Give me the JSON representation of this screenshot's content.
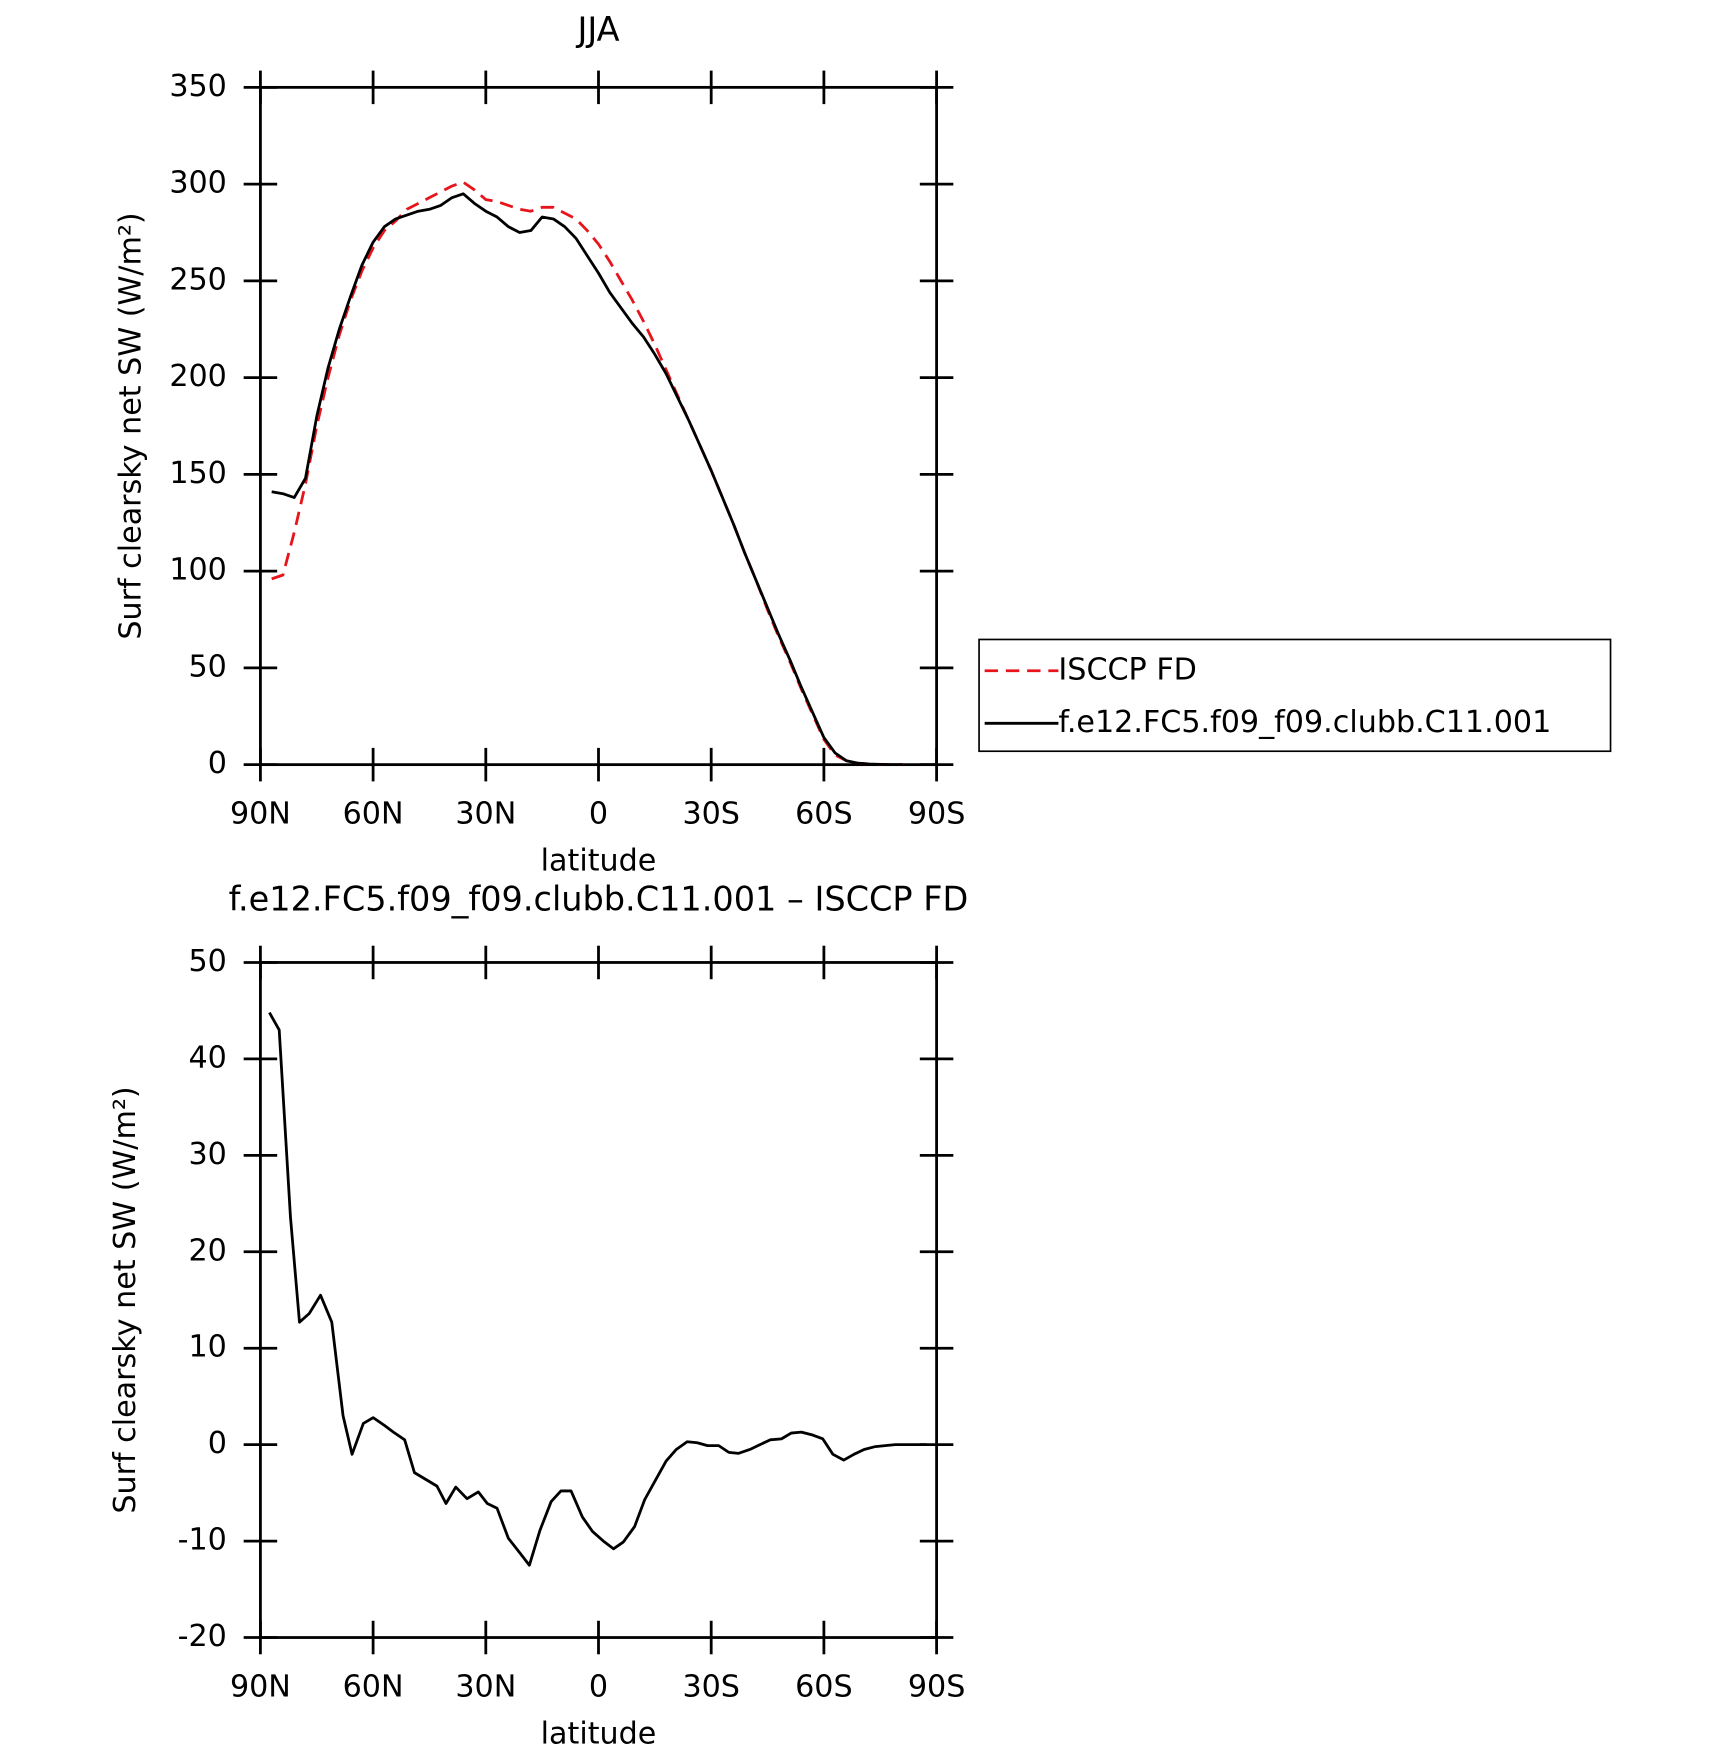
{
  "chart_data": [
    {
      "type": "line",
      "title": "JJA",
      "xlabel": "latitude",
      "ylabel": "Surf clearsky net SW (W/m²)",
      "x": [
        87,
        84,
        81,
        78,
        75,
        72,
        69,
        66,
        63,
        60,
        57,
        54,
        51,
        48,
        45,
        42,
        39,
        36,
        33,
        30,
        27,
        24,
        21,
        18,
        15,
        12,
        9,
        6,
        3,
        0,
        -3,
        -6,
        -9,
        -12,
        -15,
        -18,
        -21,
        -24,
        -27,
        -30,
        -33,
        -36,
        -39,
        -42,
        -45,
        -48,
        -51,
        -54,
        -57,
        -60,
        -63,
        -66,
        -69,
        -72,
        -75,
        -78,
        -81
      ],
      "series": [
        {
          "name": "ISCCP FD",
          "color": "#e8141b",
          "dashed": true,
          "values": [
            96,
            98,
            120,
            145,
            175,
            200,
            222,
            240,
            255,
            267,
            276,
            281,
            287,
            290,
            293,
            296,
            299,
            301,
            297,
            292,
            291,
            289,
            287,
            286,
            288,
            288,
            285,
            282,
            276,
            269,
            260,
            250,
            240,
            229,
            217,
            204,
            191,
            178,
            165,
            152,
            138,
            124,
            109,
            95,
            80,
            66,
            53,
            39,
            26,
            13,
            5,
            2,
            0.8,
            0.3,
            0.1,
            0,
            0
          ]
        },
        {
          "name": "f.e12.FC5.f09_f09.clubb.C11.001",
          "color": "#000000",
          "dashed": false,
          "values": [
            141,
            140,
            138,
            148,
            180,
            205,
            225,
            242,
            258,
            270,
            278,
            282,
            284,
            286,
            287,
            289,
            293,
            295,
            290,
            286,
            283,
            278,
            275,
            276,
            283,
            282,
            278,
            272,
            263,
            254,
            244,
            236,
            228,
            221,
            212,
            202,
            190,
            178,
            165,
            152,
            138,
            124,
            109,
            95,
            81,
            67,
            54,
            40,
            27,
            14,
            6,
            2,
            0.8,
            0.3,
            0.1,
            0,
            0
          ]
        }
      ],
      "xlim": [
        90,
        -90
      ],
      "xticks": [
        {
          "value": 90,
          "label": "90N"
        },
        {
          "value": 60,
          "label": "60N"
        },
        {
          "value": 30,
          "label": "30N"
        },
        0,
        {
          "value": -30,
          "label": "30S"
        },
        {
          "value": -60,
          "label": "60S"
        },
        {
          "value": -90,
          "label": "90S"
        }
      ],
      "ylim": [
        0,
        350
      ],
      "yticks": [
        0,
        50,
        100,
        150,
        200,
        250,
        300,
        350
      ],
      "legend": "right"
    },
    {
      "type": "line",
      "title": "f.e12.FC5.f09_f09.clubb.C11.001 – ISCCP FD",
      "xlabel": "latitude",
      "ylabel": "Surf clearsky net SW (W/m²)",
      "x": [
        87.6,
        85,
        82,
        79.6,
        77,
        74,
        71,
        68,
        65.6,
        62.6,
        60,
        57,
        54.6,
        51.6,
        49,
        46,
        43,
        40.6,
        38,
        35,
        32,
        29.6,
        27,
        24,
        21,
        18.4,
        15.6,
        12.6,
        10,
        7.3,
        4.3,
        1.6,
        -1.3,
        -4,
        -6.6,
        -9.6,
        -12.3,
        -15,
        -18,
        -20.7,
        -23.6,
        -26.3,
        -29,
        -32,
        -34.7,
        -37.3,
        -40.3,
        -43,
        -45.7,
        -48.7,
        -51.3,
        -54,
        -57,
        -59.7,
        -62.4,
        -65.3,
        -68,
        -70.7,
        -73.7,
        -76.3,
        -79,
        -82,
        -84.6,
        -87.3
      ],
      "values": [
        44.8,
        43,
        23.6,
        12.7,
        13.6,
        15.5,
        12.7,
        3,
        -1,
        2.2,
        2.8,
        2,
        1.3,
        0.5,
        -2.9,
        -3.6,
        -4.3,
        -6.1,
        -4.4,
        -5.6,
        -4.9,
        -6.1,
        -6.6,
        -9.7,
        -11.2,
        -12.5,
        -8.9,
        -5.9,
        -4.8,
        -4.8,
        -7.5,
        -9,
        -10,
        -10.8,
        -10.1,
        -8.5,
        -5.7,
        -3.8,
        -1.7,
        -0.5,
        0.3,
        0.2,
        -0.1,
        -0.1,
        -0.8,
        -0.9,
        -0.5,
        0,
        0.5,
        0.6,
        1.2,
        1.3,
        1,
        0.6,
        -1,
        -1.6,
        -1,
        -0.5,
        -0.2,
        -0.1,
        0,
        0,
        0,
        0
      ],
      "color": "#000000",
      "xlim": [
        90,
        -90
      ],
      "xticks": [
        {
          "value": 90,
          "label": "90N"
        },
        {
          "value": 60,
          "label": "60N"
        },
        {
          "value": 30,
          "label": "30N"
        },
        0,
        {
          "value": -30,
          "label": "30S"
        },
        {
          "value": -60,
          "label": "60S"
        },
        {
          "value": -90,
          "label": "90S"
        }
      ],
      "ylim": [
        -20,
        50
      ],
      "yticks": [
        -20,
        -10,
        0,
        10,
        20,
        30,
        40,
        50
      ]
    }
  ]
}
